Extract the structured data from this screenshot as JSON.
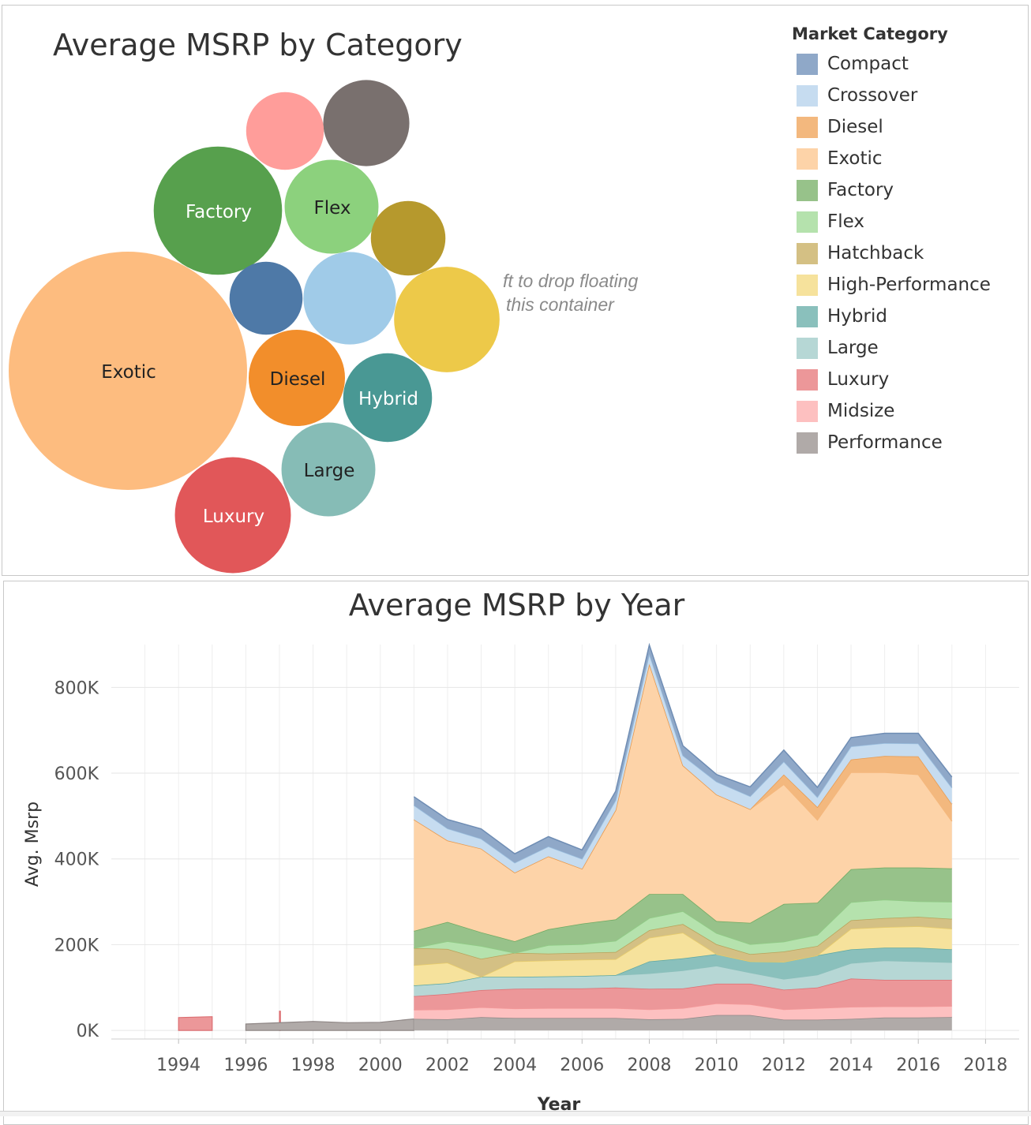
{
  "charts": {
    "category": {
      "title": "Average MSRP by Category"
    },
    "year": {
      "title": "Average MSRP by Year"
    }
  },
  "legend": {
    "title": "Market Category",
    "items": [
      {
        "label": "Compact",
        "color": "#8fa8c8"
      },
      {
        "label": "Crossover",
        "color": "#c6dcf0"
      },
      {
        "label": "Diesel",
        "color": "#f3b87e"
      },
      {
        "label": "Exotic",
        "color": "#fdd3a8"
      },
      {
        "label": "Factory",
        "color": "#97c28a"
      },
      {
        "label": "Flex",
        "color": "#b5e2ad"
      },
      {
        "label": "Hatchback",
        "color": "#d4c084"
      },
      {
        "label": "High-Performance",
        "color": "#f6e29c"
      },
      {
        "label": "Hybrid",
        "color": "#8ac0bc"
      },
      {
        "label": "Large",
        "color": "#b6d7d5"
      },
      {
        "label": "Luxury",
        "color": "#ec9799"
      },
      {
        "label": "Midsize",
        "color": "#fdc0c0"
      },
      {
        "label": "Performance",
        "color": "#b0aaa8"
      }
    ]
  },
  "drop_hint": {
    "line1": "ft to drop floating",
    "line2": "this container"
  },
  "chart_data": [
    {
      "type": "bubble",
      "title": "Average MSRP by Category",
      "bubbles": [
        {
          "category": "Exotic",
          "label": "Exotic",
          "value": 245000,
          "color": "#fdbc7f",
          "text_color": "#222222"
        },
        {
          "category": "Factory",
          "label": "Factory",
          "value": 71000,
          "color": "#57a04d",
          "text_color": "#ffffff"
        },
        {
          "category": "Luxury",
          "label": "Luxury",
          "value": 58000,
          "color": "#e15759",
          "text_color": "#ffffff"
        },
        {
          "category": "High-Performance",
          "label": "",
          "value": 48000,
          "color": "#edc949",
          "text_color": "#222222"
        },
        {
          "category": "Crossover",
          "label": "",
          "value": 37000,
          "color": "#a0cbe8",
          "text_color": "#222222"
        },
        {
          "category": "Diesel",
          "label": "Diesel",
          "value": 40000,
          "color": "#f28e2b",
          "text_color": "#222222"
        },
        {
          "category": "Large",
          "label": "Large",
          "value": 38000,
          "color": "#86bcb6",
          "text_color": "#222222"
        },
        {
          "category": "Flex",
          "label": "Flex",
          "value": 38000,
          "color": "#8cd17d",
          "text_color": "#222222"
        },
        {
          "category": "Hybrid",
          "label": "Hybrid",
          "value": 34000,
          "color": "#499894",
          "text_color": "#ffffff"
        },
        {
          "category": "Performance",
          "label": "",
          "value": 32000,
          "color": "#79706e",
          "text_color": "#ffffff"
        },
        {
          "category": "Midsize",
          "label": "",
          "value": 26000,
          "color": "#ff9d9a",
          "text_color": "#222222"
        },
        {
          "category": "Compact",
          "label": "",
          "value": 23000,
          "color": "#4e79a7",
          "text_color": "#ffffff"
        },
        {
          "category": "Hatchback",
          "label": "",
          "value": 24000,
          "color": "#b6992d",
          "text_color": "#222222"
        }
      ]
    },
    {
      "type": "area",
      "stacked": true,
      "title": "Average MSRP by Year",
      "xlabel": "Year",
      "ylabel": "Avg. Msrp",
      "xlim": [
        1992,
        2019
      ],
      "ylim": [
        -20000,
        900000
      ],
      "x_ticks": [
        1994,
        1996,
        1998,
        2000,
        2002,
        2004,
        2006,
        2008,
        2010,
        2012,
        2014,
        2016,
        2018
      ],
      "y_ticks": [
        {
          "value": 0,
          "label": "0K"
        },
        {
          "value": 200000,
          "label": "200K"
        },
        {
          "value": 400000,
          "label": "400K"
        },
        {
          "value": 600000,
          "label": "600K"
        },
        {
          "value": 800000,
          "label": "800K"
        }
      ],
      "grid": true,
      "x": [
        2001,
        2002,
        2003,
        2004,
        2005,
        2006,
        2007,
        2008,
        2009,
        2010,
        2011,
        2012,
        2013,
        2014,
        2015,
        2016,
        2017
      ],
      "series": [
        {
          "name": "Performance",
          "color": "#b0aaa8",
          "stroke": "#8f8786",
          "values": [
            27000,
            26000,
            31000,
            29000,
            29000,
            29000,
            29000,
            26000,
            27000,
            36000,
            36000,
            25000,
            25000,
            27000,
            30000,
            30000,
            31000
          ]
        },
        {
          "name": "Midsize",
          "color": "#fdc0c0",
          "stroke": "#f59a9a",
          "values": [
            21000,
            23000,
            23000,
            22000,
            23000,
            23000,
            23000,
            23000,
            25000,
            27000,
            25000,
            24000,
            27000,
            28000,
            26000,
            26000,
            26000
          ]
        },
        {
          "name": "Luxury",
          "color": "#ec9799",
          "stroke": "#dc6f72",
          "values": [
            32000,
            36000,
            40000,
            46000,
            46000,
            46000,
            48000,
            48000,
            46000,
            46000,
            48000,
            46000,
            48000,
            66000,
            62000,
            62000,
            61000
          ]
        },
        {
          "name": "Large",
          "color": "#b6d7d5",
          "stroke": "#8cbfbb",
          "values": [
            25000,
            25000,
            31000,
            28000,
            28000,
            29000,
            29000,
            36000,
            42000,
            42000,
            26000,
            25000,
            30000,
            36000,
            45000,
            43000,
            41000
          ]
        },
        {
          "name": "Hybrid",
          "color": "#8ac0bc",
          "stroke": "#5ea8a2",
          "values": [
            0,
            0,
            0,
            0,
            0,
            0,
            0,
            28000,
            28000,
            27000,
            26000,
            40000,
            45000,
            32000,
            30000,
            32000,
            30000
          ]
        },
        {
          "name": "High-Performance",
          "color": "#f6e29c",
          "stroke": "#e8cc6a",
          "values": [
            47000,
            48000,
            0,
            36000,
            37000,
            38000,
            37000,
            55000,
            60000,
            0,
            0,
            0,
            0,
            48000,
            48000,
            50000,
            48000
          ]
        },
        {
          "name": "Hatchback",
          "color": "#d4c084",
          "stroke": "#b8a25a",
          "values": [
            40000,
            32000,
            42000,
            20000,
            16000,
            16000,
            17000,
            18000,
            20000,
            23000,
            17000,
            24000,
            22000,
            20000,
            21000,
            22000,
            23000
          ]
        },
        {
          "name": "Flex",
          "color": "#b5e2ad",
          "stroke": "#8fcc85",
          "values": [
            0,
            18000,
            30000,
            0,
            20000,
            20000,
            26000,
            28000,
            30000,
            26000,
            23000,
            23000,
            26000,
            42000,
            43000,
            36000,
            40000
          ]
        },
        {
          "name": "Factory",
          "color": "#97c28a",
          "stroke": "#6fa962",
          "values": [
            40000,
            45000,
            32000,
            27000,
            37000,
            48000,
            50000,
            56000,
            40000,
            28000,
            50000,
            88000,
            75000,
            77000,
            75000,
            79000,
            78000
          ]
        },
        {
          "name": "Exotic",
          "color": "#fdd3a8",
          "stroke": "#f5b77c",
          "values": [
            260000,
            190000,
            195000,
            160000,
            170000,
            128000,
            255000,
            537000,
            300000,
            295000,
            265000,
            279000,
            193000,
            226000,
            222000,
            217000,
            110000
          ]
        },
        {
          "name": "Diesel",
          "color": "#f3b87e",
          "stroke": "#e89a4e",
          "values": [
            0,
            0,
            0,
            0,
            0,
            0,
            0,
            0,
            0,
            0,
            0,
            23000,
            30000,
            30000,
            38000,
            42000,
            40000
          ]
        },
        {
          "name": "Crossover",
          "color": "#c6dcf0",
          "stroke": "#9cc0e0",
          "values": [
            33000,
            28000,
            23000,
            23000,
            23000,
            23000,
            23000,
            23000,
            23000,
            30000,
            30000,
            30000,
            23000,
            30000,
            30000,
            30000,
            38000
          ]
        },
        {
          "name": "Compact",
          "color": "#8fa8c8",
          "stroke": "#6f8db4",
          "values": [
            20000,
            21000,
            23000,
            21000,
            23000,
            21000,
            21000,
            21000,
            23000,
            17000,
            22000,
            27000,
            23000,
            21000,
            23000,
            24000,
            25000
          ]
        }
      ],
      "early_marks": [
        {
          "name": "Luxury",
          "color": "#ec9799",
          "stroke": "#dc6f72",
          "points": [
            [
              1994,
              0
            ],
            [
              1994,
              30000
            ],
            [
              1995,
              32000
            ],
            [
              1995,
              0
            ]
          ]
        },
        {
          "name": "Luxury",
          "color": "#ec9799",
          "stroke": "#dc6f72",
          "points": [
            [
              1997,
              0
            ],
            [
              1997,
              45000
            ],
            [
              1997.03,
              45000
            ],
            [
              1997.03,
              0
            ]
          ]
        },
        {
          "name": "Performance",
          "color": "#b0aaa8",
          "stroke": "#8f8786",
          "points": [
            [
              1996,
              0
            ],
            [
              1996,
              15000
            ],
            [
              1998,
              21000
            ],
            [
              1999,
              18000
            ],
            [
              2000,
              19000
            ],
            [
              2001,
              27000
            ],
            [
              2001,
              0
            ]
          ]
        }
      ]
    }
  ]
}
